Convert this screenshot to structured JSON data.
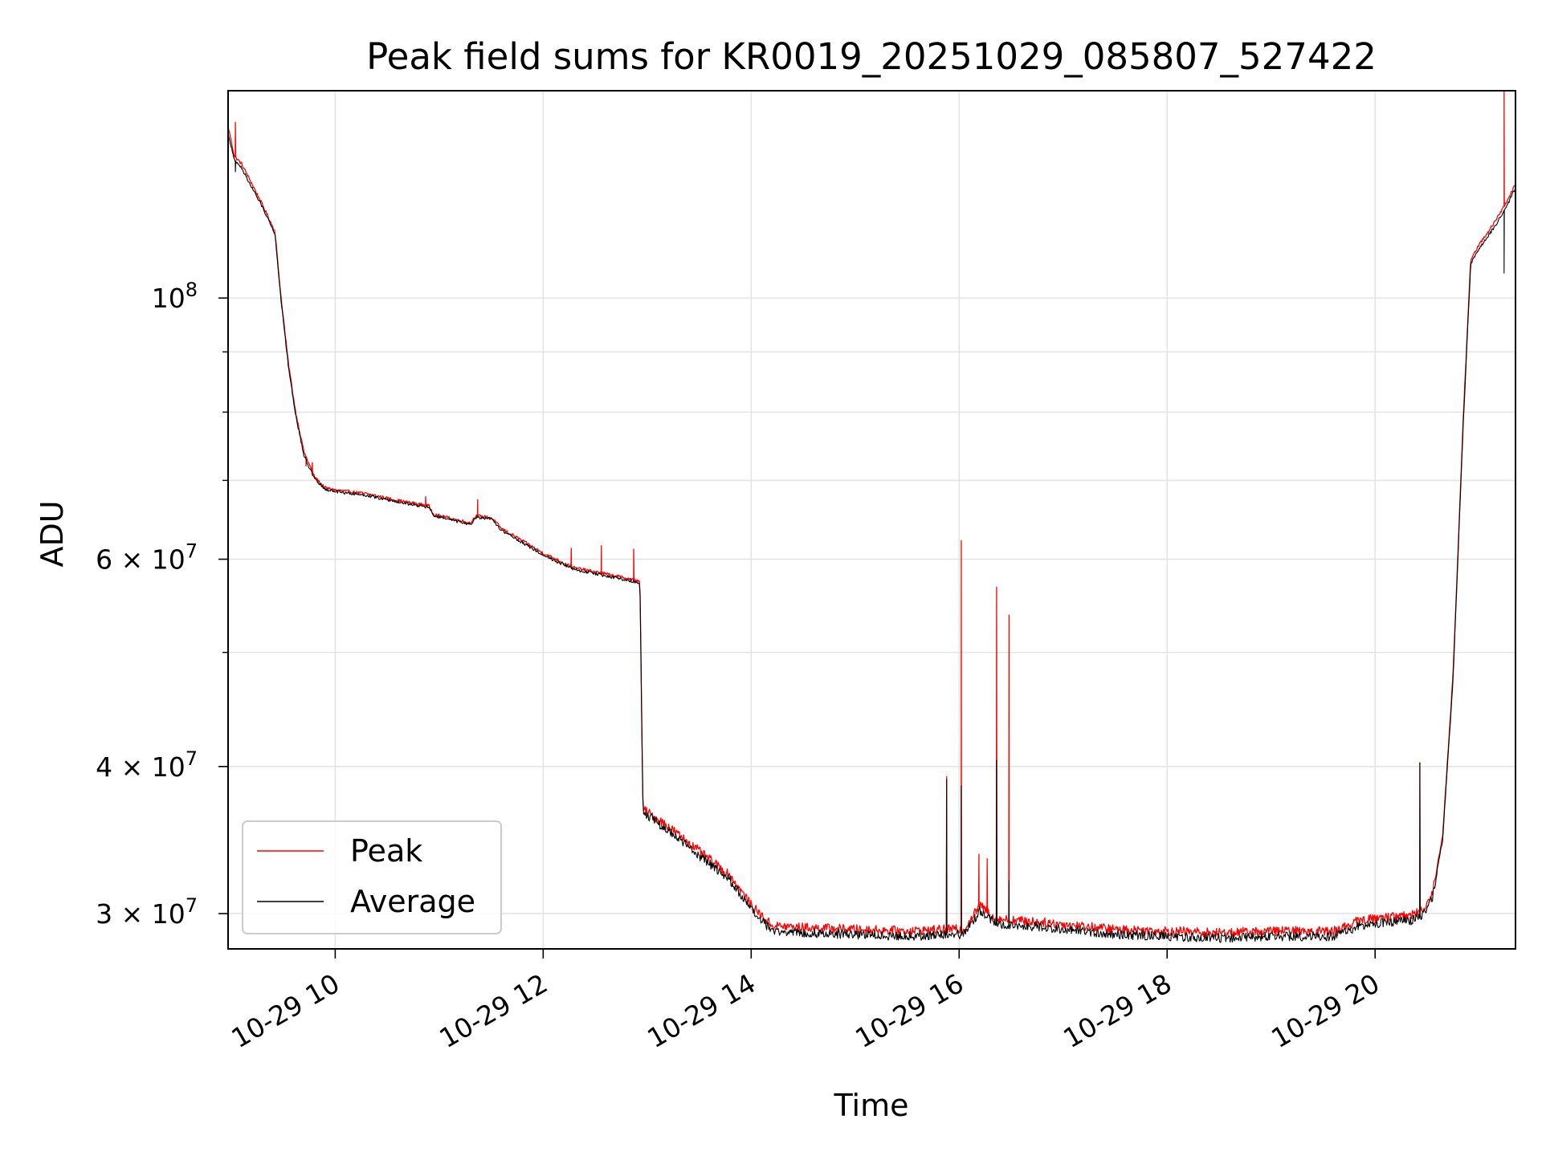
{
  "chart_data": {
    "type": "line",
    "title": "Peak field sums for KR0019_20251029_085807_527422",
    "xlabel": "Time",
    "ylabel": "ADU",
    "yscale": "log",
    "xlim_hours": [
      8.97,
      21.35
    ],
    "ylim": [
      28000000,
      150000000
    ],
    "grid": true,
    "legend_position": "lower-left",
    "x_ticks": [
      {
        "hour": 10,
        "label": "10-29 10"
      },
      {
        "hour": 12,
        "label": "10-29 12"
      },
      {
        "hour": 14,
        "label": "10-29 14"
      },
      {
        "hour": 16,
        "label": "10-29 16"
      },
      {
        "hour": 18,
        "label": "10-29 18"
      },
      {
        "hour": 20,
        "label": "10-29 20"
      }
    ],
    "y_major_ticks": [
      {
        "value": 100000000,
        "base": "10",
        "exp": "8"
      },
      {
        "value": 60000000,
        "base": "6 × 10",
        "exp": "7"
      },
      {
        "value": 40000000,
        "base": "4 × 10",
        "exp": "7"
      },
      {
        "value": 30000000,
        "base": "3 × 10",
        "exp": "7"
      }
    ],
    "y_minor_ticks": [
      90000000,
      80000000,
      70000000,
      50000000
    ],
    "series": [
      {
        "name": "Peak",
        "color": "#ff0000",
        "baseline": [
          [
            8.97,
            140000000
          ],
          [
            9.03,
            132000000
          ],
          [
            9.1,
            130000000
          ],
          [
            9.2,
            125000000
          ],
          [
            9.3,
            120000000
          ],
          [
            9.42,
            114000000
          ],
          [
            9.48,
            100000000
          ],
          [
            9.55,
            88000000
          ],
          [
            9.62,
            80000000
          ],
          [
            9.7,
            74000000
          ],
          [
            9.8,
            70500000
          ],
          [
            9.9,
            69000000
          ],
          [
            10.0,
            68700000
          ],
          [
            10.3,
            68200000
          ],
          [
            10.6,
            67300000
          ],
          [
            10.9,
            66600000
          ],
          [
            10.95,
            65500000
          ],
          [
            11.3,
            64400000
          ],
          [
            11.35,
            65300000
          ],
          [
            11.5,
            65100000
          ],
          [
            11.6,
            63700000
          ],
          [
            11.8,
            62200000
          ],
          [
            12.0,
            60700000
          ],
          [
            12.3,
            59000000
          ],
          [
            12.6,
            58300000
          ],
          [
            12.93,
            57500000
          ],
          [
            12.96,
            36800000
          ],
          [
            13.2,
            35600000
          ],
          [
            13.5,
            33900000
          ],
          [
            13.8,
            32300000
          ],
          [
            14.0,
            30500000
          ],
          [
            14.2,
            29300000
          ],
          [
            14.5,
            29200000
          ],
          [
            15.0,
            29100000
          ],
          [
            15.5,
            29000000
          ],
          [
            15.9,
            29100000
          ],
          [
            16.05,
            29100000
          ],
          [
            16.2,
            30500000
          ],
          [
            16.35,
            29700000
          ],
          [
            16.8,
            29500000
          ],
          [
            17.5,
            29100000
          ],
          [
            18.0,
            29000000
          ],
          [
            18.5,
            28900000
          ],
          [
            19.0,
            29000000
          ],
          [
            19.6,
            29000000
          ],
          [
            19.85,
            29600000
          ],
          [
            20.1,
            29800000
          ],
          [
            20.35,
            29900000
          ],
          [
            20.45,
            30200000
          ],
          [
            20.55,
            31200000
          ],
          [
            20.65,
            35000000
          ],
          [
            20.75,
            48000000
          ],
          [
            20.85,
            80000000
          ],
          [
            20.92,
            108000000
          ],
          [
            21.0,
            111000000
          ],
          [
            21.15,
            116000000
          ],
          [
            21.25,
            120000000
          ],
          [
            21.35,
            125000000
          ]
        ],
        "spikes": [
          [
            9.04,
            141000000
          ],
          [
            9.72,
            72000000
          ],
          [
            9.78,
            72500000
          ],
          [
            10.87,
            67800000
          ],
          [
            11.37,
            67400000
          ],
          [
            12.27,
            61300000
          ],
          [
            12.56,
            61600000
          ],
          [
            12.87,
            61200000
          ],
          [
            15.88,
            39200000
          ],
          [
            16.02,
            62200000
          ],
          [
            16.19,
            33700000
          ],
          [
            16.27,
            33400000
          ],
          [
            16.36,
            56800000
          ],
          [
            16.48,
            53800000
          ],
          [
            20.43,
            40300000
          ],
          [
            21.24,
            160000000
          ]
        ]
      },
      {
        "name": "Average",
        "color": "#000000",
        "baseline": [
          [
            8.97,
            138000000
          ],
          [
            9.03,
            131000000
          ],
          [
            9.1,
            129000000
          ],
          [
            9.2,
            124000000
          ],
          [
            9.3,
            119500000
          ],
          [
            9.42,
            113500000
          ],
          [
            9.48,
            99500000
          ],
          [
            9.55,
            87500000
          ],
          [
            9.62,
            79500000
          ],
          [
            9.7,
            73500000
          ],
          [
            9.8,
            70200000
          ],
          [
            9.9,
            68800000
          ],
          [
            10.0,
            68500000
          ],
          [
            10.3,
            68000000
          ],
          [
            10.6,
            67100000
          ],
          [
            10.9,
            66400000
          ],
          [
            10.95,
            65300000
          ],
          [
            11.3,
            64200000
          ],
          [
            11.35,
            65100000
          ],
          [
            11.5,
            64900000
          ],
          [
            11.6,
            63500000
          ],
          [
            11.8,
            62000000
          ],
          [
            12.0,
            60500000
          ],
          [
            12.3,
            58800000
          ],
          [
            12.6,
            58100000
          ],
          [
            12.93,
            57300000
          ],
          [
            12.96,
            36600000
          ],
          [
            13.2,
            35300000
          ],
          [
            13.5,
            33600000
          ],
          [
            13.8,
            32000000
          ],
          [
            14.0,
            30200000
          ],
          [
            14.2,
            29000000
          ],
          [
            14.5,
            28900000
          ],
          [
            15.0,
            28800000
          ],
          [
            15.5,
            28700000
          ],
          [
            15.9,
            28800000
          ],
          [
            16.05,
            28800000
          ],
          [
            16.2,
            30200000
          ],
          [
            16.35,
            29400000
          ],
          [
            16.8,
            29200000
          ],
          [
            17.5,
            28800000
          ],
          [
            18.0,
            28700000
          ],
          [
            18.5,
            28600000
          ],
          [
            19.0,
            28700000
          ],
          [
            19.6,
            28700000
          ],
          [
            19.85,
            29300000
          ],
          [
            20.1,
            29500000
          ],
          [
            20.35,
            29600000
          ],
          [
            20.45,
            29900000
          ],
          [
            20.55,
            30900000
          ],
          [
            20.65,
            34700000
          ],
          [
            20.75,
            47500000
          ],
          [
            20.85,
            79000000
          ],
          [
            20.92,
            107000000
          ],
          [
            21.0,
            110000000
          ],
          [
            21.15,
            115000000
          ],
          [
            21.25,
            119000000
          ],
          [
            21.35,
            124000000
          ]
        ],
        "spikes": [
          [
            9.04,
            128000000
          ],
          [
            15.88,
            39000000
          ],
          [
            16.02,
            38500000
          ],
          [
            16.36,
            40500000
          ],
          [
            16.48,
            32000000
          ],
          [
            20.43,
            40300000
          ],
          [
            21.24,
            105000000
          ]
        ]
      }
    ]
  }
}
